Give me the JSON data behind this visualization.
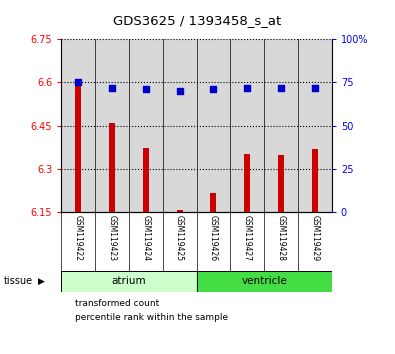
{
  "title": "GDS3625 / 1393458_s_at",
  "samples": [
    "GSM119422",
    "GSM119423",
    "GSM119424",
    "GSM119425",
    "GSM119426",
    "GSM119427",
    "GSM119428",
    "GSM119429"
  ],
  "bar_values": [
    6.601,
    6.459,
    6.373,
    6.158,
    6.218,
    6.351,
    6.348,
    6.37
  ],
  "percentile_values": [
    75,
    72,
    71,
    70,
    71,
    72,
    72,
    72
  ],
  "bar_color": "#cc0000",
  "dot_color": "#0000cc",
  "ylim_left": [
    6.15,
    6.75
  ],
  "ylim_right": [
    0,
    100
  ],
  "yticks_left": [
    6.15,
    6.3,
    6.45,
    6.6,
    6.75
  ],
  "ytick_labels_left": [
    "6.15",
    "6.3",
    "6.45",
    "6.6",
    "6.75"
  ],
  "yticks_right": [
    0,
    25,
    50,
    75,
    100
  ],
  "ytick_labels_right": [
    "0",
    "25",
    "50",
    "75",
    "100%"
  ],
  "bg_color": "#d8d8d8",
  "plot_bg": "#ffffff",
  "atrium_color": "#ccffcc",
  "ventricle_color": "#44dd44",
  "bar_width": 0.18,
  "dot_size": 18,
  "legend_bar_label": "transformed count",
  "legend_dot_label": "percentile rank within the sample",
  "tissue_label": "tissue"
}
